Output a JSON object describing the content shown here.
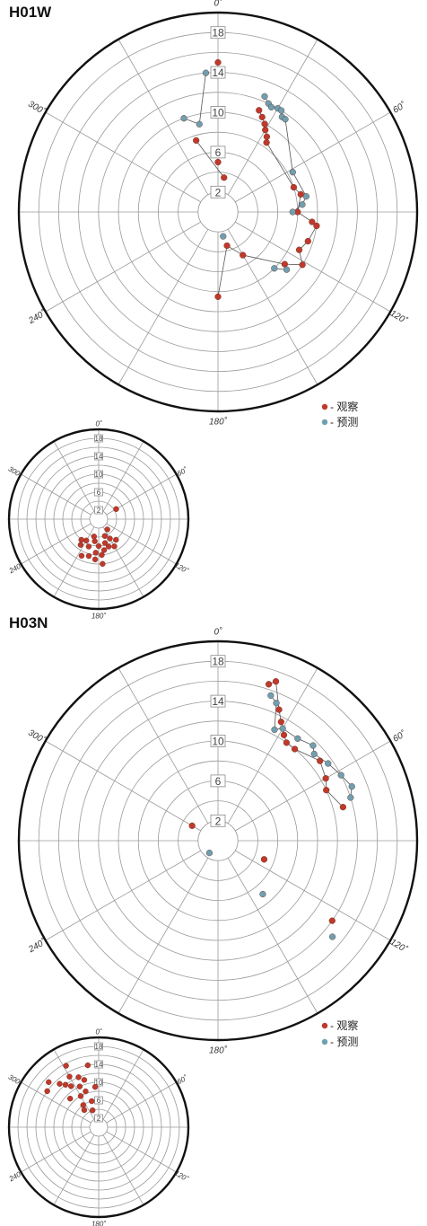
{
  "legend": {
    "observed": "- 观察",
    "predicted": "- 预测"
  },
  "colors": {
    "observed": "#c0392b",
    "predicted": "#6f9fb0",
    "ring": "#9a9a9a",
    "outer": "#111111"
  },
  "chart_data": [
    {
      "type": "scatter",
      "coordinate": "polar",
      "title": "H01W",
      "angle_unit": "deg",
      "angle_ticks": [
        0,
        60,
        120,
        180,
        240,
        300
      ],
      "angle_tick_labels": [
        "0˚",
        "60˚",
        "120˚",
        "180˚",
        "240˚",
        "300˚"
      ],
      "rlim": [
        0,
        20
      ],
      "ring_labels": [
        2,
        6,
        10,
        14,
        18
      ],
      "series": [
        {
          "name": "观察",
          "points": [
            [
              10,
              3.5
            ],
            [
              343,
              7.5
            ],
            [
              0,
              15
            ],
            [
              0,
              5
            ],
            [
              22,
              11
            ],
            [
              25,
              10.5
            ],
            [
              28,
              10
            ],
            [
              30,
              9.5
            ],
            [
              33,
              9
            ],
            [
              35,
              8.5
            ],
            [
              72,
              8
            ],
            [
              78,
              8.5
            ],
            [
              90,
              8
            ],
            [
              96,
              9.5
            ],
            [
              98,
              10
            ],
            [
              108,
              9.5
            ],
            [
              115,
              9
            ],
            [
              122,
              10
            ],
            [
              128,
              8.5
            ],
            [
              150,
              5
            ],
            [
              165,
              3.5
            ],
            [
              180,
              8.5
            ]
          ]
        },
        {
          "name": "预测",
          "points": [
            [
              340,
              10
            ],
            [
              348,
              9
            ],
            [
              355,
              14
            ],
            [
              22,
              12.5
            ],
            [
              25,
              12
            ],
            [
              27,
              11.8
            ],
            [
              30,
              12
            ],
            [
              32,
              12
            ],
            [
              34,
              11.5
            ],
            [
              36,
              11.5
            ],
            [
              62,
              8.5
            ],
            [
              80,
              9
            ],
            [
              85,
              8.5
            ],
            [
              90,
              7.5
            ],
            [
              130,
              9
            ],
            [
              135,
              8
            ],
            [
              168,
              2.5
            ]
          ]
        }
      ]
    },
    {
      "type": "scatter",
      "coordinate": "polar",
      "title": "H03N",
      "angle_unit": "deg",
      "angle_ticks": [
        0,
        60,
        120,
        180,
        240,
        300
      ],
      "angle_tick_labels": [
        "0˚",
        "60˚",
        "120˚",
        "180˚",
        "240˚",
        "300˚"
      ],
      "rlim": [
        0,
        20
      ],
      "ring_labels": [
        2,
        6,
        10,
        14,
        18
      ],
      "series": [
        {
          "name": "观察",
          "points": [
            [
              18,
              16.5
            ],
            [
              20,
              17
            ],
            [
              25,
              14.5
            ],
            [
              28,
              13.5
            ],
            [
              32,
              12.5
            ],
            [
              35,
              12
            ],
            [
              40,
              12
            ],
            [
              52,
              13
            ],
            [
              60,
              12.5
            ],
            [
              65,
              12
            ],
            [
              75,
              13
            ],
            [
              112,
              5
            ],
            [
              125,
              14
            ],
            [
              300,
              3
            ]
          ]
        },
        {
          "name": "预测",
          "points": [
            [
              20,
              15.5
            ],
            [
              23,
              15
            ],
            [
              27,
              12.5
            ],
            [
              30,
              13
            ],
            [
              38,
              13
            ],
            [
              45,
              13.5
            ],
            [
              48,
              13
            ],
            [
              55,
              13.5
            ],
            [
              62,
              14
            ],
            [
              68,
              14.5
            ],
            [
              72,
              14
            ],
            [
              140,
              7
            ],
            [
              130,
              15
            ],
            [
              215,
              1.5
            ]
          ]
        }
      ]
    },
    {
      "type": "scatter",
      "coordinate": "polar",
      "title": "",
      "angle_ticks": [
        0,
        60,
        120,
        180,
        240,
        300
      ],
      "angle_tick_labels": [
        "0˚",
        "60˚",
        "120˚",
        "180˚",
        "240˚",
        "300˚"
      ],
      "rlim": [
        0,
        20
      ],
      "ring_labels": [
        2,
        6,
        10,
        14,
        18
      ],
      "series": [
        {
          "name": "观察",
          "points": [
            [
              140,
              3
            ],
            [
              150,
              5
            ],
            [
              160,
              6.5
            ],
            [
              165,
              5.5
            ],
            [
              170,
              7
            ],
            [
              175,
              8
            ],
            [
              180,
              6
            ],
            [
              185,
              7.5
            ],
            [
              190,
              5
            ],
            [
              195,
              8.5
            ],
            [
              200,
              6.5
            ],
            [
              205,
              9
            ],
            [
              210,
              5.5
            ],
            [
              215,
              7
            ],
            [
              220,
              6
            ],
            [
              160,
              4
            ],
            [
              150,
              7
            ],
            [
              140,
              6
            ],
            [
              60,
              4.5
            ],
            [
              175,
              10
            ],
            [
              195,
              4
            ],
            [
              185,
              9
            ]
          ]
        }
      ]
    },
    {
      "type": "scatter",
      "coordinate": "polar",
      "title": "",
      "angle_ticks": [
        0,
        60,
        120,
        180,
        240,
        300
      ],
      "angle_tick_labels": [
        "0˚",
        "60˚",
        "120˚",
        "180˚",
        "240˚",
        "300˚"
      ],
      "rlim": [
        0,
        20
      ],
      "ring_labels": [
        2,
        6,
        10,
        14,
        18
      ],
      "series": [
        {
          "name": "观察",
          "points": [
            [
              305,
              14
            ],
            [
              312,
              15
            ],
            [
              318,
              13
            ],
            [
              322,
              12
            ],
            [
              326,
              11
            ],
            [
              330,
              13
            ],
            [
              335,
              10
            ],
            [
              338,
              12
            ],
            [
              340,
              8.5
            ],
            [
              343,
              11
            ],
            [
              330,
              8
            ],
            [
              325,
              6
            ],
            [
              315,
              9
            ],
            [
              345,
              6
            ],
            [
              350,
              14
            ],
            [
              355,
              9
            ],
            [
              332,
              15.5
            ],
            [
              340,
              4
            ],
            [
              320,
              5
            ]
          ]
        }
      ]
    }
  ]
}
